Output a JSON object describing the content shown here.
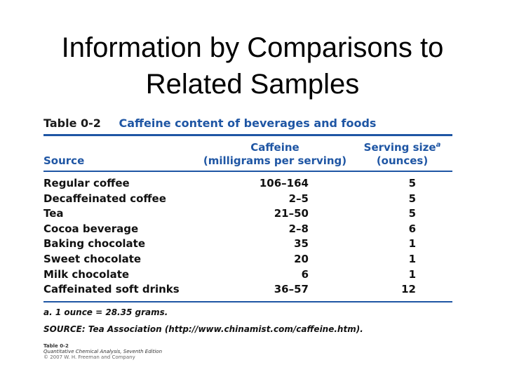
{
  "slide": {
    "title_line1": "Information by Comparisons to",
    "title_line2": "Related Samples"
  },
  "table": {
    "number": "Table 0-2",
    "caption": "Caffeine content of beverages and foods",
    "headers": {
      "source": "Source",
      "caffeine_line1": "Caffeine",
      "caffeine_line2": "(milligrams per serving)",
      "serving_line1": "Serving size",
      "serving_sup": "a",
      "serving_line2": "(ounces)"
    },
    "rows": [
      {
        "source": "Regular coffee",
        "caffeine": "106–164",
        "serving": "5"
      },
      {
        "source": "Decaffeinated coffee",
        "caffeine": "2–5",
        "serving": "5"
      },
      {
        "source": "Tea",
        "caffeine": "21–50",
        "serving": "5"
      },
      {
        "source": "Cocoa beverage",
        "caffeine": "2–8",
        "serving": "6"
      },
      {
        "source": "Baking chocolate",
        "caffeine": "35",
        "serving": "1"
      },
      {
        "source": "Sweet chocolate",
        "caffeine": "20",
        "serving": "1"
      },
      {
        "source": "Milk chocolate",
        "caffeine": "6",
        "serving": "1"
      },
      {
        "source": "Caffeinated soft drinks",
        "caffeine": "36–57",
        "serving": "12"
      }
    ],
    "footnote": "a. 1 ounce = 28.35 grams.",
    "source_note": "SOURCE: Tea Association (http://www.chinamist.com/caffeine.htm).",
    "credit": {
      "table": "Table 0-2",
      "edition": "Quantitative Chemical Analysis, Seventh Edition",
      "copyright": "© 2007 W. H. Freeman and Company"
    }
  },
  "colors": {
    "accent": "#1f56a4",
    "text": "#111111",
    "background": "#ffffff"
  }
}
